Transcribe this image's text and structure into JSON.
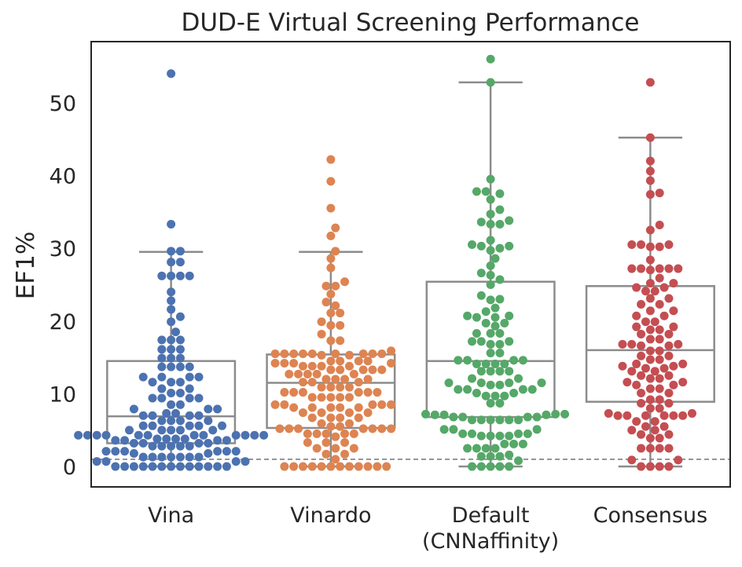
{
  "chart_data": {
    "type": "box-swarm",
    "title": "DUD-E Virtual Screening Performance",
    "ylabel": "EF1%",
    "xlabel": "",
    "ylim": [
      -2.8,
      58.4
    ],
    "yticks": [
      "0",
      "10",
      "20",
      "30",
      "40",
      "50"
    ],
    "reference_line": 1,
    "grid": false,
    "categories": [
      {
        "lines": [
          "Vina"
        ]
      },
      {
        "lines": [
          "Vinardo"
        ]
      },
      {
        "lines": [
          "Default",
          "(CNNaffinity)"
        ]
      },
      {
        "lines": [
          "Consensus"
        ]
      }
    ],
    "series": [
      {
        "color": "#4c72b0",
        "box": {
          "whislo": 0,
          "q1": 3.2,
          "median": 6.9,
          "q3": 14.5,
          "whishi": 29.5
        },
        "values": [
          54,
          33.3,
          29.6,
          29.6,
          28.1,
          28.1,
          26.2,
          26.2,
          26.2,
          26.2,
          24,
          22.8,
          21.6,
          20.6,
          19.9,
          18.5,
          17.4,
          17.4,
          17.4,
          16.1,
          16.1,
          16.1,
          14.9,
          14.9,
          14.9,
          13.7,
          13.7,
          13.7,
          13.7,
          12.3,
          12.3,
          12.3,
          12.3,
          11.6,
          11.6,
          11.6,
          10.7,
          10.7,
          10.1,
          10.1,
          9.4,
          9.4,
          9.4,
          9.4,
          8.5,
          8.5,
          7.9,
          7.9,
          7.9,
          7.3,
          7.3,
          7,
          7,
          7,
          7,
          6.3,
          6.3,
          6.3,
          6.3,
          5.6,
          5.6,
          5.6,
          5.6,
          5.6,
          5,
          5,
          5,
          5,
          5,
          4.3,
          4.3,
          4.3,
          4.3,
          4.3,
          4.3,
          4.3,
          4.3,
          4.3,
          4.3,
          4.3,
          4.3,
          3.8,
          3.8,
          3.8,
          3.8,
          3.6,
          3.6,
          3.6,
          3.6,
          3.2,
          3.2,
          3.2,
          3.2,
          2.8,
          2.8,
          2.8,
          2.8,
          2.8,
          2.1,
          2.1,
          2.1,
          2.1,
          2.1,
          2.1,
          1.8,
          1.8,
          1.3,
          1.3,
          1.3,
          1.3,
          1.3,
          1.3,
          1.3,
          0.7,
          0.7,
          0.7,
          0.7,
          0,
          0,
          0,
          0,
          0,
          0,
          0,
          0,
          0,
          0,
          0,
          0,
          0
        ]
      },
      {
        "color": "#dd8452",
        "box": {
          "whislo": 0,
          "q1": 5.3,
          "median": 11.5,
          "q3": 15.4,
          "whishi": 29.5
        },
        "values": [
          42.2,
          39.2,
          35.5,
          32.8,
          31.7,
          29.6,
          28.6,
          27.3,
          25.4,
          24.8,
          24.8,
          23.7,
          22.6,
          22.1,
          21.1,
          21.1,
          19.9,
          19.4,
          19.4,
          18.2,
          17.3,
          17.3,
          15.9,
          15.5,
          15.5,
          15.5,
          15.5,
          15.5,
          15.5,
          15.5,
          15.5,
          15.5,
          15.3,
          15.3,
          14.5,
          14.5,
          14.5,
          14.5,
          14.2,
          14.2,
          14.2,
          14.2,
          13.8,
          13.8,
          13.8,
          13.8,
          13.3,
          13.3,
          13.3,
          13.3,
          13.3,
          12.7,
          12.7,
          12.7,
          12.7,
          12.7,
          12,
          12,
          12,
          12,
          11.6,
          11.6,
          11.6,
          10.9,
          10.9,
          10.9,
          10.9,
          10.2,
          10.2,
          10.2,
          10.2,
          10.2,
          10.2,
          9.5,
          9.5,
          9.5,
          9.5,
          9.5,
          8.5,
          8.5,
          8.5,
          8.5,
          8.5,
          8.1,
          8.1,
          8.1,
          8.1,
          8.1,
          7.4,
          7.4,
          7.4,
          7.4,
          6.7,
          6.7,
          6.7,
          6.7,
          5.9,
          5.9,
          5.5,
          5.5,
          5.2,
          5.2,
          5.2,
          5.2,
          5.2,
          5.2,
          5.2,
          4.5,
          4.5,
          4.5,
          4.5,
          4.5,
          4.1,
          3.3,
          3.3,
          3.3,
          2.5,
          2.5,
          2.5,
          1.7,
          1.7,
          1,
          0,
          0,
          0,
          0,
          0,
          0,
          0,
          0,
          0,
          0,
          0,
          0
        ]
      },
      {
        "color": "#55a868",
        "box": {
          "whislo": 0,
          "q1": 6.8,
          "median": 14.5,
          "q3": 25.4,
          "whishi": 52.8
        },
        "values": [
          56,
          52.8,
          39.5,
          37.8,
          37.8,
          37.5,
          36.7,
          35.3,
          34.7,
          33.8,
          33.6,
          33.3,
          33.3,
          31.1,
          30.5,
          30.3,
          30.3,
          30,
          29.7,
          28.6,
          27.6,
          26.6,
          26.3,
          25.7,
          25,
          23.5,
          23,
          22.9,
          21.8,
          21.3,
          20.7,
          20.7,
          20.5,
          20.5,
          19.7,
          19.7,
          19.3,
          18.3,
          18.3,
          18.3,
          17.2,
          17.2,
          17.2,
          16.8,
          16.8,
          15.6,
          15.6,
          14.6,
          14.6,
          14.6,
          14.6,
          14.1,
          14.1,
          14.1,
          14.1,
          13.1,
          13.1,
          13.1,
          13.1,
          12.1,
          12.1,
          11.5,
          11.5,
          11.5,
          11.5,
          11.2,
          11.2,
          10.6,
          10.6,
          10.6,
          10.6,
          10.1,
          10.1,
          9.7,
          9.7,
          9.7,
          8.7,
          8.7,
          7.2,
          7.2,
          7.2,
          7.1,
          7.1,
          7.1,
          6.8,
          6.8,
          6.8,
          6.8,
          6.4,
          6.4,
          6.4,
          6.4,
          6.4,
          6.4,
          5.1,
          5.1,
          5.1,
          4.5,
          4.5,
          4.5,
          4.5,
          4.2,
          4.2,
          4.2,
          4.2,
          3.1,
          3.1,
          3.1,
          2.5,
          2.5,
          2.5,
          2.5,
          1.6,
          1.4,
          1.4,
          1.4,
          0.8,
          0,
          0,
          0,
          0,
          0
        ]
      },
      {
        "color": "#c44e52",
        "box": {
          "whislo": 0,
          "q1": 8.9,
          "median": 16,
          "q3": 24.8,
          "whishi": 45.2
        },
        "values": [
          52.8,
          45.2,
          42,
          40.6,
          39.3,
          37.6,
          37.4,
          33.2,
          32.5,
          30.5,
          30.5,
          30.5,
          30.2,
          30.2,
          28.4,
          27.2,
          27.2,
          27.2,
          27.2,
          27.2,
          27,
          25.9,
          25.2,
          25.2,
          24.6,
          24.6,
          24.1,
          24.1,
          23.1,
          23.1,
          22.3,
          22.3,
          21.4,
          21.4,
          20.7,
          20.7,
          19.9,
          19.9,
          19.2,
          19.2,
          18.8,
          18.8,
          18.2,
          18.2,
          17.5,
          17.5,
          16.8,
          16.8,
          16.8,
          16.6,
          16.6,
          15.9,
          15.9,
          15.2,
          15.2,
          14.7,
          14.7,
          14.1,
          14.1,
          13.8,
          13.8,
          13.5,
          13.5,
          13.1,
          13.1,
          12.5,
          12.5,
          12.1,
          12.1,
          11.6,
          11.6,
          11.2,
          11.2,
          10.7,
          10.7,
          10.1,
          10.1,
          9.2,
          9.2,
          8.7,
          8.7,
          8,
          8,
          7.3,
          7.3,
          7,
          7,
          7,
          7,
          7,
          7,
          6.2,
          6.2,
          5.5,
          5.5,
          5,
          5,
          4.4,
          4.4,
          3.9,
          3.9,
          2.5,
          2.5,
          2.5,
          2.5,
          0.9,
          0.9,
          0,
          0,
          0,
          0
        ]
      }
    ]
  }
}
